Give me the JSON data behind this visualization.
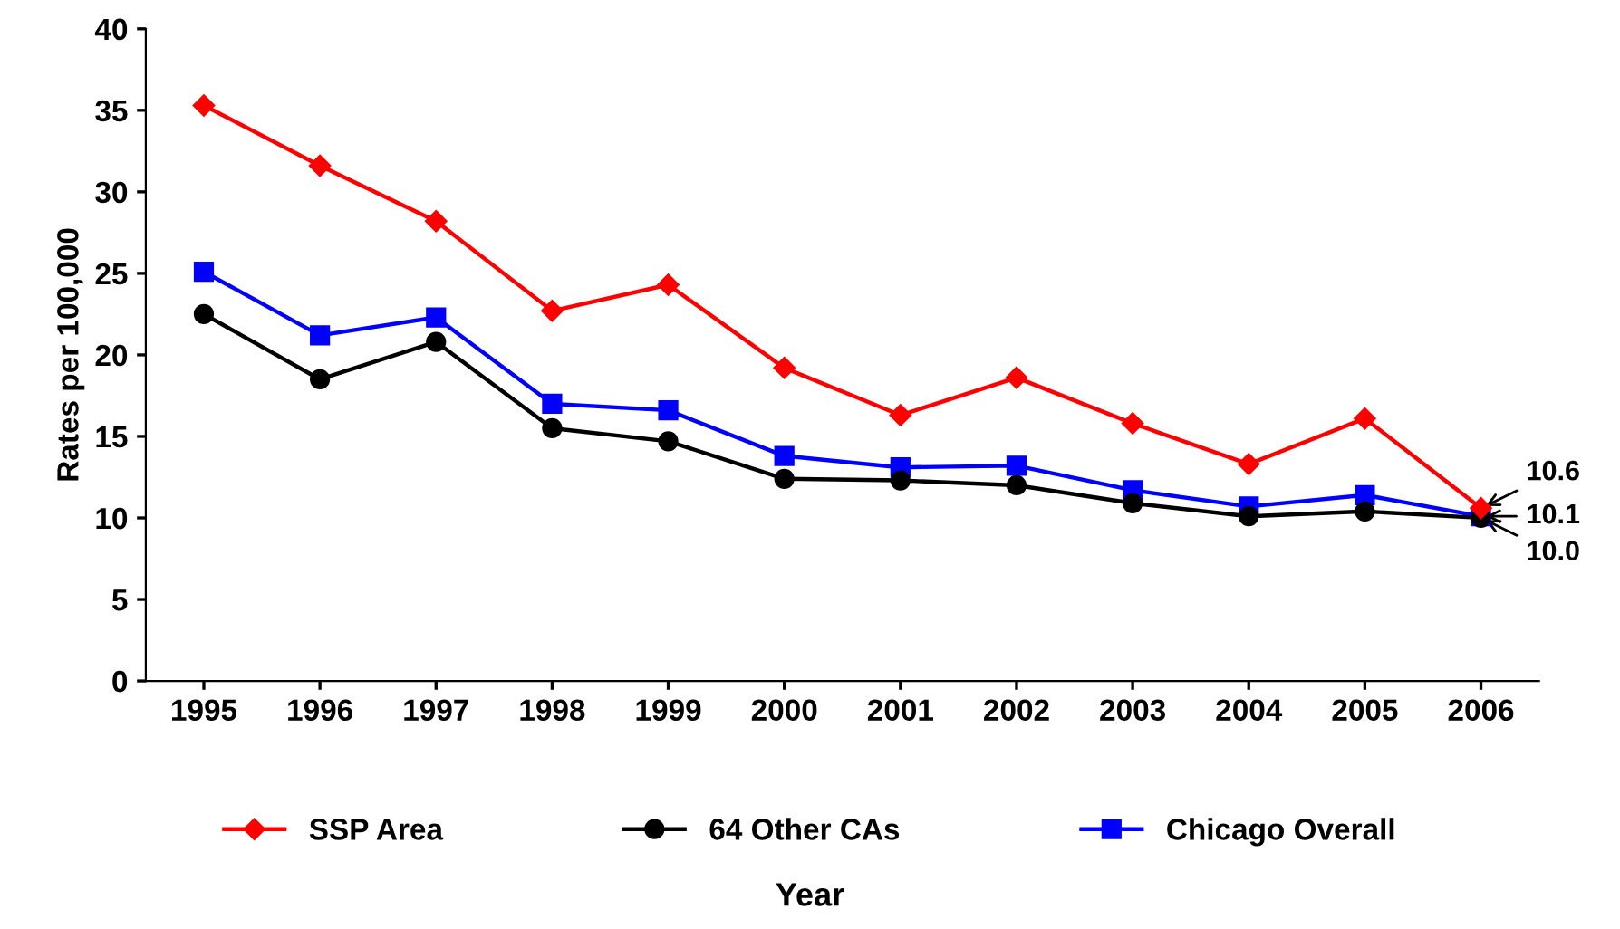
{
  "chart_data": {
    "type": "line",
    "xlabel": "Year",
    "ylabel": "Rates per 100,000",
    "categories": [
      "1995",
      "1996",
      "1997",
      "1998",
      "1999",
      "2000",
      "2001",
      "2002",
      "2003",
      "2004",
      "2005",
      "2006"
    ],
    "ylim": [
      0,
      40
    ],
    "yticks": [
      0,
      5,
      10,
      15,
      20,
      25,
      30,
      35,
      40
    ],
    "grid": false,
    "legend": "bottom",
    "series": [
      {
        "name": "SSP Area",
        "color": "#ff0000",
        "marker": "diamond",
        "values": [
          35.3,
          31.6,
          28.2,
          22.7,
          24.3,
          19.2,
          16.3,
          18.6,
          15.8,
          13.3,
          16.1,
          10.6
        ],
        "value_labels": [
          null,
          null,
          null,
          null,
          null,
          null,
          null,
          null,
          null,
          null,
          null,
          "10.6"
        ]
      },
      {
        "name": "64 Other CAs",
        "color": "#000000",
        "marker": "circle",
        "values": [
          22.5,
          18.5,
          20.8,
          15.5,
          14.7,
          12.4,
          12.3,
          12.0,
          10.9,
          10.1,
          10.4,
          10.0
        ],
        "value_labels": [
          null,
          null,
          null,
          null,
          null,
          null,
          null,
          null,
          null,
          null,
          null,
          "10.0"
        ]
      },
      {
        "name": "Chicago Overall",
        "color": "#0000ff",
        "marker": "square",
        "values": [
          25.1,
          21.2,
          22.3,
          17.0,
          16.6,
          13.8,
          13.1,
          13.2,
          11.7,
          10.7,
          11.4,
          10.1
        ],
        "value_labels": [
          null,
          null,
          null,
          null,
          null,
          null,
          null,
          null,
          null,
          null,
          null,
          "10.1"
        ]
      }
    ]
  }
}
